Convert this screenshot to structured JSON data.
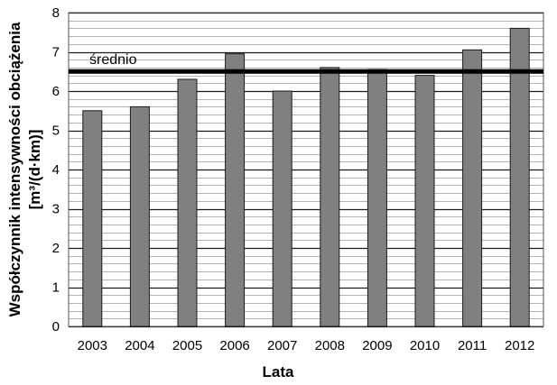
{
  "chart_data": {
    "type": "bar",
    "title": "",
    "xlabel": "Lata",
    "ylabel": "Współczynnik intensywności obciążenia",
    "ylabel_unit": "[m³/(d·km)]",
    "categories": [
      "2003",
      "2004",
      "2005",
      "2006",
      "2007",
      "2008",
      "2009",
      "2010",
      "2011",
      "2012"
    ],
    "values": [
      5.5,
      5.6,
      6.3,
      6.95,
      6.0,
      6.6,
      6.55,
      6.4,
      7.05,
      7.6
    ],
    "ylim": [
      0,
      8
    ],
    "yticks": [
      0,
      1,
      2,
      3,
      4,
      5,
      6,
      7,
      8
    ],
    "grid": true,
    "reference_line": {
      "label": "średnio",
      "value": 6.5
    },
    "colors": {
      "bar": "#808080",
      "bar_edge": "#1a1a1a",
      "grid": "#1a1a1a",
      "reference": "#000000"
    }
  }
}
